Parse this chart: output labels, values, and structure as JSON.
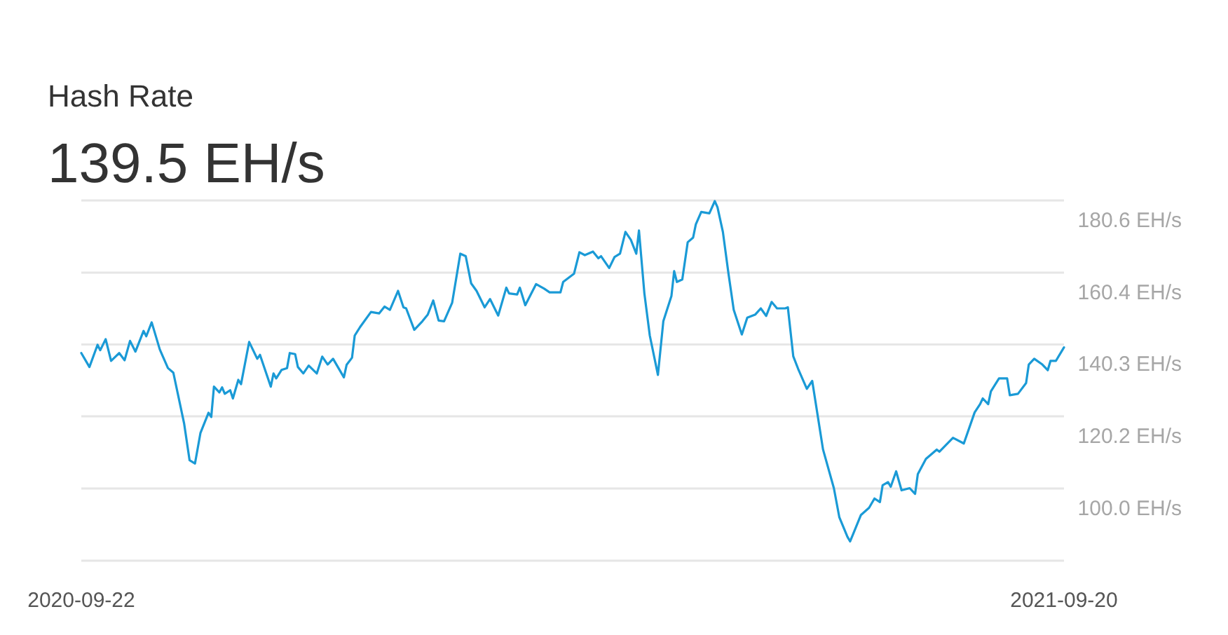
{
  "chart_data": {
    "type": "line",
    "title": "Hash Rate",
    "subtitle": "139.5 EH/s",
    "x": [
      "2020-09-22",
      "2020-09-25",
      "2020-09-28",
      "2020-09-29",
      "2020-10-01",
      "2020-10-03",
      "2020-10-06",
      "2020-10-08",
      "2020-10-10",
      "2020-10-12",
      "2020-10-15",
      "2020-10-16",
      "2020-10-18",
      "2020-10-21",
      "2020-10-24",
      "2020-10-26",
      "2020-10-30",
      "2020-11-01",
      "2020-11-03",
      "2020-11-05",
      "2020-11-08",
      "2020-11-09",
      "2020-11-10",
      "2020-11-12",
      "2020-11-13",
      "2020-11-14",
      "2020-11-16",
      "2020-11-17",
      "2020-11-19",
      "2020-11-20",
      "2020-11-23",
      "2020-11-26",
      "2020-11-27",
      "2020-12-01",
      "2020-12-02",
      "2020-12-03",
      "2020-12-05",
      "2020-12-07",
      "2020-12-08",
      "2020-12-10",
      "2020-12-11",
      "2020-12-13",
      "2020-12-15",
      "2020-12-18",
      "2020-12-20",
      "2020-12-22",
      "2020-12-24",
      "2020-12-28",
      "2020-12-29",
      "2020-12-31",
      "2021-01-01",
      "2021-01-03",
      "2021-01-07",
      "2021-01-10",
      "2021-01-12",
      "2021-01-14",
      "2021-01-17",
      "2021-01-19",
      "2021-01-20",
      "2021-01-23",
      "2021-01-26",
      "2021-01-28",
      "2021-01-30",
      "2021-02-01",
      "2021-02-03",
      "2021-02-06",
      "2021-02-09",
      "2021-02-11",
      "2021-02-13",
      "2021-02-15",
      "2021-02-18",
      "2021-02-20",
      "2021-02-23",
      "2021-02-26",
      "2021-02-27",
      "2021-03-02",
      "2021-03-03",
      "2021-03-05",
      "2021-03-09",
      "2021-03-12",
      "2021-03-14",
      "2021-03-18",
      "2021-03-19",
      "2021-03-23",
      "2021-03-25",
      "2021-03-27",
      "2021-03-30",
      "2021-04-01",
      "2021-04-02",
      "2021-04-05",
      "2021-04-07",
      "2021-04-09",
      "2021-04-11",
      "2021-04-13",
      "2021-04-15",
      "2021-04-16",
      "2021-04-18",
      "2021-04-20",
      "2021-04-23",
      "2021-04-25",
      "2021-04-28",
      "2021-04-29",
      "2021-04-30",
      "2021-05-02",
      "2021-05-04",
      "2021-05-06",
      "2021-05-07",
      "2021-05-09",
      "2021-05-12",
      "2021-05-14",
      "2021-05-15",
      "2021-05-17",
      "2021-05-19",
      "2021-05-21",
      "2021-05-24",
      "2021-05-26",
      "2021-05-29",
      "2021-05-31",
      "2021-06-02",
      "2021-06-04",
      "2021-06-06",
      "2021-06-09",
      "2021-06-10",
      "2021-06-12",
      "2021-06-14",
      "2021-06-17",
      "2021-06-19",
      "2021-06-23",
      "2021-06-27",
      "2021-06-29",
      "2021-07-02",
      "2021-07-03",
      "2021-07-07",
      "2021-07-10",
      "2021-07-12",
      "2021-07-14",
      "2021-07-15",
      "2021-07-17",
      "2021-07-18",
      "2021-07-20",
      "2021-07-22",
      "2021-07-25",
      "2021-07-27",
      "2021-07-28",
      "2021-07-31",
      "2021-08-04",
      "2021-08-05",
      "2021-08-10",
      "2021-08-14",
      "2021-08-18",
      "2021-08-20",
      "2021-08-21",
      "2021-08-23",
      "2021-08-24",
      "2021-08-27",
      "2021-08-30",
      "2021-08-31",
      "2021-09-03",
      "2021-09-06",
      "2021-09-07",
      "2021-09-09",
      "2021-09-12",
      "2021-09-14",
      "2021-09-15",
      "2021-09-17",
      "2021-09-20"
    ],
    "series": [
      {
        "color": "#1a9ad6",
        "values": [
          137.9,
          134.0,
          140.2,
          138.7,
          141.8,
          135.7,
          137.9,
          135.9,
          141.3,
          138.3,
          144.1,
          142.6,
          146.5,
          138.9,
          133.7,
          132.4,
          118.1,
          107.9,
          107.0,
          115.5,
          121.2,
          120.0,
          128.5,
          126.9,
          128.3,
          126.5,
          127.5,
          125.2,
          130.4,
          129.2,
          141.0,
          136.3,
          137.4,
          128.5,
          132.2,
          130.8,
          133.2,
          133.7,
          137.9,
          137.6,
          134.0,
          132.2,
          134.4,
          132.2,
          136.9,
          134.7,
          136.3,
          131.1,
          134.6,
          136.6,
          142.8,
          145.2,
          149.4,
          149.0,
          150.9,
          150.0,
          155.3,
          150.7,
          150.4,
          144.4,
          146.8,
          148.7,
          152.6,
          147.0,
          146.8,
          152.0,
          165.7,
          165.0,
          157.4,
          155.3,
          150.7,
          153.0,
          148.4,
          156.2,
          154.6,
          154.3,
          156.2,
          151.3,
          157.2,
          155.9,
          154.9,
          154.9,
          157.8,
          160.1,
          166.1,
          165.3,
          166.3,
          164.4,
          165.0,
          161.7,
          164.8,
          165.7,
          171.8,
          169.6,
          165.7,
          172.2,
          154.6,
          142.8,
          131.8,
          146.8,
          153.9,
          160.8,
          157.8,
          158.5,
          168.9,
          170.2,
          173.9,
          177.4,
          177.0,
          180.4,
          178.7,
          171.8,
          160.5,
          150.0,
          143.1,
          147.8,
          148.7,
          150.4,
          148.3,
          152.2,
          150.4,
          150.4,
          150.7,
          137.0,
          133.1,
          127.9,
          130.1,
          110.9,
          100.1,
          92.0,
          86.5,
          85.2,
          92.6,
          94.6,
          97.2,
          96.2,
          100.9,
          101.8,
          100.5,
          104.8,
          99.5,
          100.1,
          98.5,
          104.0,
          108.3,
          110.9,
          110.3,
          114.2,
          112.6,
          121.3,
          123.6,
          125.2,
          123.6,
          127.2,
          130.8,
          130.8,
          126.1,
          126.5,
          129.5,
          134.7,
          136.3,
          134.7,
          133.1,
          135.7,
          135.7,
          139.5
        ]
      }
    ],
    "xlim": [
      "2020-09-22",
      "2021-09-20"
    ],
    "xticks": [
      {
        "value": "2020-09-22",
        "label": "2020-09-22"
      },
      {
        "value": "2021-09-20",
        "label": "2021-09-20"
      }
    ],
    "ylim": [
      79.8,
      180.6
    ],
    "yticks": [
      {
        "value": 79.8,
        "label": null
      },
      {
        "value": 100.0,
        "label": "100.0 EH/s"
      },
      {
        "value": 120.2,
        "label": "120.2 EH/s"
      },
      {
        "value": 140.3,
        "label": "140.3 EH/s"
      },
      {
        "value": 160.4,
        "label": "160.4 EH/s"
      },
      {
        "value": 180.6,
        "label": "180.6 EH/s"
      }
    ],
    "grid": "y",
    "marker": "none",
    "line_style": "solid"
  }
}
